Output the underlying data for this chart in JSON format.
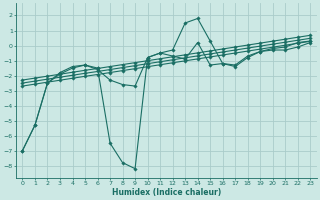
{
  "bg_color": "#cce8e4",
  "grid_color": "#aaccca",
  "line_color": "#1a6e64",
  "xlabel": "Humidex (Indice chaleur)",
  "xlim": [
    -0.5,
    23.5
  ],
  "ylim": [
    -8.8,
    2.8
  ],
  "yticks": [
    2,
    1,
    0,
    -1,
    -2,
    -3,
    -4,
    -5,
    -6,
    -7,
    -8
  ],
  "xticks": [
    0,
    1,
    2,
    3,
    4,
    5,
    6,
    7,
    8,
    9,
    10,
    11,
    12,
    13,
    14,
    15,
    16,
    17,
    18,
    19,
    20,
    21,
    22,
    23
  ],
  "series1_x": [
    0,
    1,
    2,
    3,
    4,
    5,
    6,
    7,
    8,
    9,
    10,
    11,
    12,
    13,
    14,
    15,
    16,
    17,
    18,
    19,
    20,
    21,
    22,
    23
  ],
  "series1_y": [
    -7.0,
    -5.3,
    -2.5,
    -1.8,
    -1.4,
    -1.3,
    -1.5,
    -6.5,
    -7.8,
    -8.2,
    -0.8,
    -0.5,
    -0.3,
    1.5,
    1.8,
    0.3,
    -1.2,
    -1.4,
    -0.8,
    -0.4,
    -0.2,
    -0.1,
    0.2,
    0.3
  ],
  "series2_x": [
    0,
    1,
    2,
    3,
    4,
    5,
    6,
    7,
    8,
    9,
    10,
    11,
    12,
    13,
    14,
    15,
    16,
    17,
    18,
    19,
    20,
    21,
    22,
    23
  ],
  "series2_y": [
    -7.0,
    -5.3,
    -2.5,
    -1.9,
    -1.5,
    -1.3,
    -1.6,
    -2.3,
    -2.6,
    -2.7,
    -0.8,
    -0.5,
    -0.7,
    -0.9,
    0.2,
    -1.3,
    -1.2,
    -1.3,
    -0.7,
    -0.4,
    -0.3,
    -0.3,
    -0.1,
    0.2
  ],
  "linear1_x": [
    0,
    1,
    2,
    3,
    4,
    5,
    6,
    7,
    8,
    9,
    10,
    11,
    12,
    13,
    14,
    15,
    16,
    17,
    18,
    19,
    20,
    21,
    22,
    23
  ],
  "linear1_y": [
    -2.7,
    -2.57,
    -2.44,
    -2.31,
    -2.18,
    -2.05,
    -1.93,
    -1.8,
    -1.67,
    -1.54,
    -1.41,
    -1.28,
    -1.15,
    -1.02,
    -0.89,
    -0.76,
    -0.63,
    -0.5,
    -0.37,
    -0.24,
    -0.11,
    0.02,
    0.15,
    0.28
  ],
  "linear2_x": [
    0,
    1,
    2,
    3,
    4,
    5,
    6,
    7,
    8,
    9,
    10,
    11,
    12,
    13,
    14,
    15,
    16,
    17,
    18,
    19,
    20,
    21,
    22,
    23
  ],
  "linear2_y": [
    -2.5,
    -2.37,
    -2.24,
    -2.11,
    -1.98,
    -1.85,
    -1.73,
    -1.6,
    -1.47,
    -1.34,
    -1.21,
    -1.08,
    -0.95,
    -0.82,
    -0.69,
    -0.56,
    -0.43,
    -0.3,
    -0.17,
    -0.04,
    0.09,
    0.22,
    0.35,
    0.48
  ],
  "linear3_x": [
    0,
    1,
    2,
    3,
    4,
    5,
    6,
    7,
    8,
    9,
    10,
    11,
    12,
    13,
    14,
    15,
    16,
    17,
    18,
    19,
    20,
    21,
    22,
    23
  ],
  "linear3_y": [
    -2.3,
    -2.17,
    -2.04,
    -1.91,
    -1.78,
    -1.65,
    -1.53,
    -1.4,
    -1.27,
    -1.14,
    -1.01,
    -0.88,
    -0.75,
    -0.62,
    -0.49,
    -0.36,
    -0.23,
    -0.1,
    0.03,
    0.16,
    0.29,
    0.42,
    0.55,
    0.68
  ]
}
